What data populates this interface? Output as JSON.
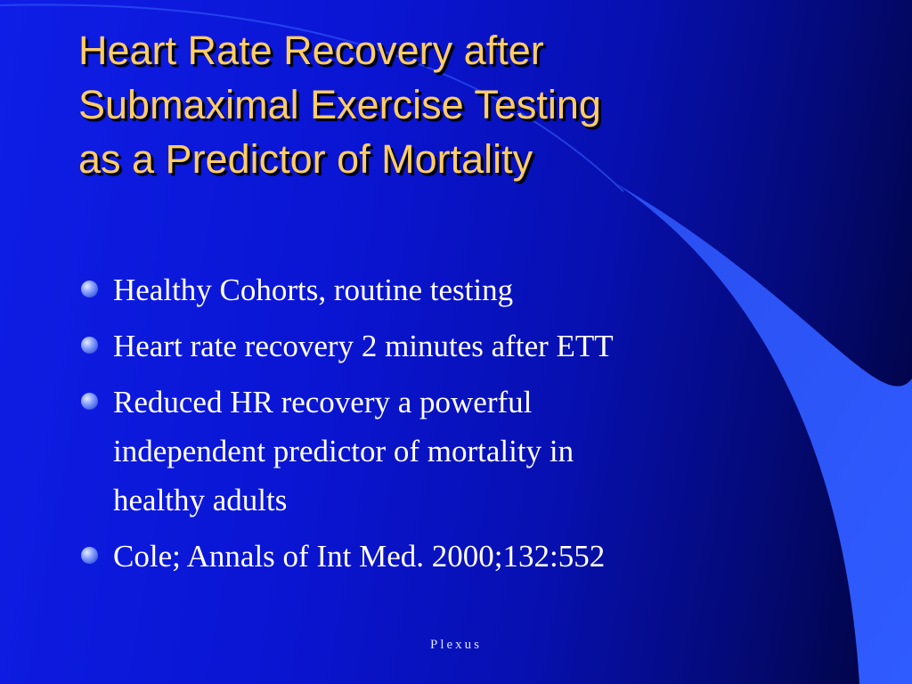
{
  "slide": {
    "title_lines": [
      "Heart Rate Recovery after",
      "Submaximal Exercise Testing",
      "as a Predictor of Mortality"
    ],
    "bullets": [
      {
        "lines": [
          "Healthy Cohorts, routine testing"
        ]
      },
      {
        "lines": [
          "Heart rate recovery 2 minutes after ETT"
        ]
      },
      {
        "lines": [
          "Reduced HR recovery a powerful",
          "independent predictor of mortality in",
          "healthy adults"
        ]
      },
      {
        "lines": [
          "Cole; Annals of Int Med. 2000;132:552"
        ]
      }
    ],
    "footer": "Plexus"
  },
  "colors": {
    "title": "#ffcc66",
    "text": "#ffffff",
    "background": "#0a15d2",
    "accent_shape": "#2f57f0",
    "bullet": "#6f88f5"
  }
}
